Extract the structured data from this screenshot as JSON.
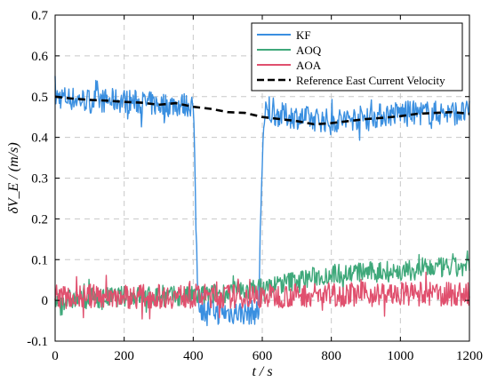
{
  "chart_data": {
    "type": "line",
    "xlabel": "t / s",
    "ylabel": "δV_E / (m/s)",
    "xlim": [
      0,
      1200
    ],
    "ylim": [
      -0.1,
      0.7
    ],
    "x_ticks": [
      0,
      200,
      400,
      600,
      800,
      1000,
      1200
    ],
    "y_ticks": [
      -0.1,
      0,
      0.1,
      0.2,
      0.3,
      0.4,
      0.5,
      0.6,
      0.7
    ],
    "grid": true,
    "legend_position": "top-right",
    "series": [
      {
        "name": "KF",
        "color": "#3a8fe0",
        "style": "noisy",
        "noise": 0.03,
        "x": [
          0,
          100,
          200,
          300,
          400,
          405,
          412,
          420,
          500,
          590,
          595,
          602,
          610,
          700,
          800,
          900,
          1000,
          1100,
          1200
        ],
        "values": [
          0.5,
          0.49,
          0.49,
          0.48,
          0.48,
          0.3,
          0.05,
          -0.02,
          -0.03,
          -0.03,
          0.2,
          0.4,
          0.46,
          0.45,
          0.44,
          0.45,
          0.46,
          0.46,
          0.46
        ]
      },
      {
        "name": "AOQ",
        "color": "#3fa87a",
        "style": "noisy",
        "noise": 0.025,
        "x": [
          0,
          200,
          400,
          600,
          700,
          800,
          900,
          1000,
          1100,
          1200
        ],
        "values": [
          0.0,
          0.01,
          0.01,
          0.03,
          0.05,
          0.065,
          0.07,
          0.07,
          0.08,
          0.08
        ]
      },
      {
        "name": "AOA",
        "color": "#e0506e",
        "style": "noisy",
        "noise": 0.03,
        "x": [
          0,
          200,
          400,
          600,
          800,
          1000,
          1200
        ],
        "values": [
          0.01,
          0.01,
          0.01,
          0.01,
          0.015,
          0.015,
          0.015
        ]
      },
      {
        "name": "Reference East Current Velocity",
        "color": "#000000",
        "style": "dashed",
        "x": [
          0,
          50,
          100,
          150,
          200,
          250,
          300,
          350,
          400,
          450,
          500,
          550,
          600,
          650,
          700,
          750,
          800,
          850,
          900,
          950,
          1000,
          1050,
          1100,
          1150,
          1200
        ],
        "values": [
          0.5,
          0.495,
          0.492,
          0.49,
          0.487,
          0.485,
          0.48,
          0.484,
          0.475,
          0.47,
          0.462,
          0.46,
          0.45,
          0.445,
          0.44,
          0.432,
          0.435,
          0.44,
          0.445,
          0.448,
          0.452,
          0.458,
          0.46,
          0.462,
          0.458
        ]
      }
    ]
  }
}
